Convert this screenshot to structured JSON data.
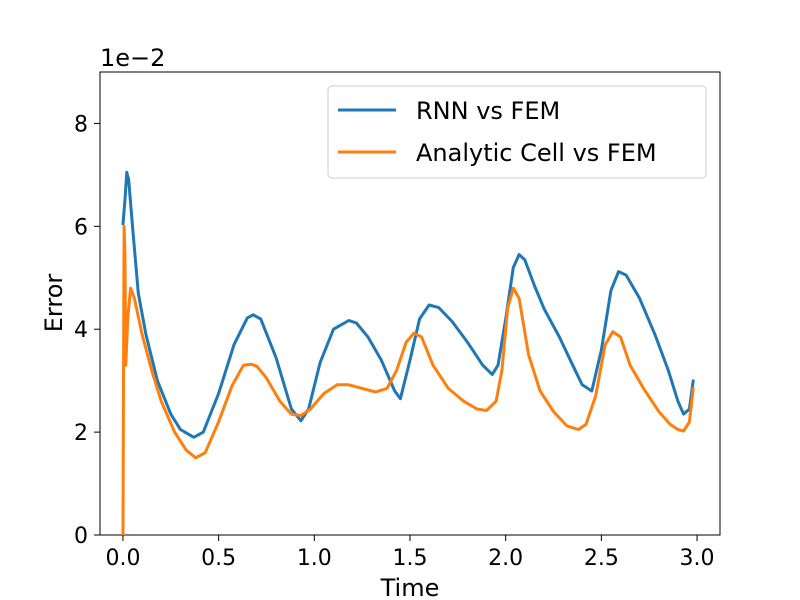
{
  "chart_data": {
    "type": "line",
    "title": "",
    "xlabel": "Time",
    "ylabel": "Error",
    "offset_label": "1e−2",
    "xlim": [
      -0.12,
      3.12
    ],
    "ylim": [
      0,
      9
    ],
    "xticks": [
      0.0,
      0.5,
      1.0,
      1.5,
      2.0,
      2.5,
      3.0
    ],
    "xtick_labels": [
      "0.0",
      "0.5",
      "1.0",
      "1.5",
      "2.0",
      "2.5",
      "3.0"
    ],
    "yticks": [
      0,
      2,
      4,
      6,
      8
    ],
    "ytick_labels": [
      "0",
      "2",
      "4",
      "6",
      "8"
    ],
    "legend_position": "top-right",
    "grid": false,
    "series": [
      {
        "name": "RNN vs FEM",
        "color": "#1f77b4",
        "x": [
          0.0,
          0.01,
          0.02,
          0.03,
          0.05,
          0.08,
          0.12,
          0.18,
          0.25,
          0.3,
          0.37,
          0.42,
          0.5,
          0.58,
          0.65,
          0.68,
          0.72,
          0.8,
          0.88,
          0.93,
          0.97,
          1.03,
          1.1,
          1.18,
          1.22,
          1.28,
          1.35,
          1.42,
          1.45,
          1.5,
          1.55,
          1.6,
          1.65,
          1.72,
          1.8,
          1.88,
          1.93,
          1.96,
          2.0,
          2.04,
          2.07,
          2.1,
          2.15,
          2.2,
          2.28,
          2.35,
          2.4,
          2.45,
          2.5,
          2.55,
          2.59,
          2.63,
          2.7,
          2.78,
          2.85,
          2.9,
          2.93,
          2.96,
          2.98
        ],
        "values": [
          6.05,
          6.5,
          7.05,
          6.9,
          6.0,
          4.7,
          3.9,
          3.0,
          2.35,
          2.05,
          1.9,
          2.0,
          2.75,
          3.7,
          4.22,
          4.28,
          4.2,
          3.45,
          2.45,
          2.22,
          2.45,
          3.35,
          4.0,
          4.17,
          4.12,
          3.85,
          3.4,
          2.8,
          2.65,
          3.4,
          4.2,
          4.47,
          4.42,
          4.15,
          3.75,
          3.3,
          3.12,
          3.3,
          4.2,
          5.2,
          5.45,
          5.35,
          4.85,
          4.4,
          3.85,
          3.3,
          2.92,
          2.8,
          3.6,
          4.75,
          5.12,
          5.05,
          4.6,
          3.9,
          3.2,
          2.6,
          2.35,
          2.45,
          3.0
        ]
      },
      {
        "name": "Analytic Cell vs FEM",
        "color": "#ff7f0e",
        "x": [
          0.0,
          0.003,
          0.006,
          0.01,
          0.015,
          0.025,
          0.04,
          0.06,
          0.1,
          0.15,
          0.2,
          0.27,
          0.33,
          0.38,
          0.43,
          0.5,
          0.57,
          0.63,
          0.67,
          0.7,
          0.75,
          0.82,
          0.88,
          0.93,
          0.98,
          1.05,
          1.12,
          1.18,
          1.25,
          1.32,
          1.38,
          1.43,
          1.48,
          1.52,
          1.56,
          1.62,
          1.7,
          1.78,
          1.85,
          1.9,
          1.95,
          1.98,
          2.01,
          2.04,
          2.07,
          2.12,
          2.18,
          2.25,
          2.32,
          2.38,
          2.42,
          2.47,
          2.52,
          2.56,
          2.6,
          2.65,
          2.72,
          2.8,
          2.86,
          2.9,
          2.93,
          2.96,
          2.98
        ],
        "values": [
          0.0,
          3.0,
          6.0,
          5.5,
          3.3,
          4.2,
          4.8,
          4.6,
          3.9,
          3.2,
          2.6,
          2.0,
          1.65,
          1.5,
          1.6,
          2.2,
          2.9,
          3.3,
          3.32,
          3.28,
          3.05,
          2.6,
          2.35,
          2.32,
          2.45,
          2.75,
          2.92,
          2.92,
          2.85,
          2.78,
          2.85,
          3.2,
          3.75,
          3.92,
          3.85,
          3.3,
          2.85,
          2.6,
          2.45,
          2.42,
          2.6,
          3.2,
          4.4,
          4.8,
          4.6,
          3.5,
          2.8,
          2.4,
          2.12,
          2.05,
          2.15,
          2.7,
          3.7,
          3.95,
          3.85,
          3.3,
          2.85,
          2.4,
          2.15,
          2.05,
          2.02,
          2.2,
          2.85
        ]
      }
    ]
  }
}
